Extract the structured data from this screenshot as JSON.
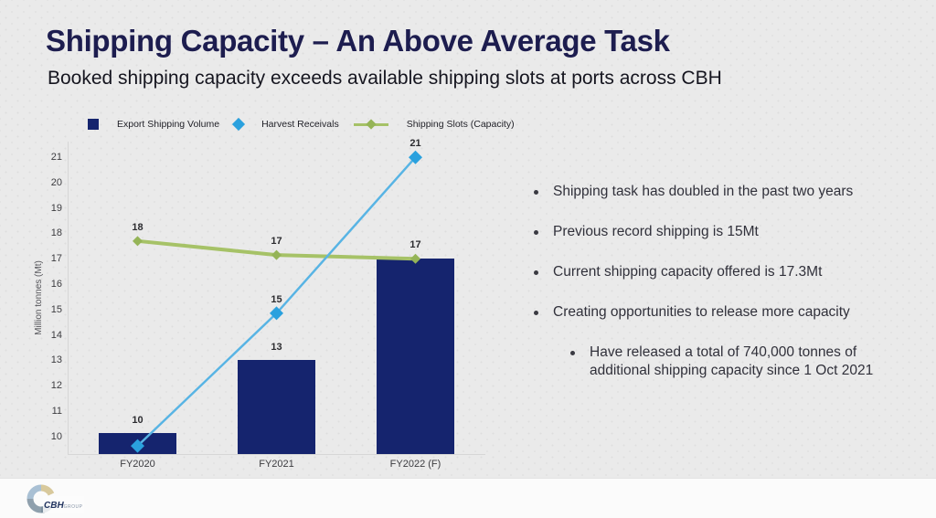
{
  "slide": {
    "title": "Shipping Capacity – An Above Average Task",
    "subtitle": "Booked shipping capacity exceeds available shipping slots at ports across CBH"
  },
  "colors": {
    "background": "#eaeaea",
    "title_navy": "#1d1d4f",
    "bar_navy": "#15246e",
    "harvest_blue": "#2aa1de",
    "harvest_line_blue": "#58b4e4",
    "slots_green": "#a6c267",
    "slots_marker_green": "#95b457",
    "axis_gray": "#d6d6d6",
    "footer_white": "#fbfbfb"
  },
  "chart_data": {
    "type": "bar",
    "subtype": "combo-bar-line",
    "categories": [
      "FY2020",
      "FY2021",
      "FY2022 (F)"
    ],
    "title": "",
    "xlabel": "",
    "ylabel": "Million tonnes (Mt)",
    "yticks": [
      10,
      11,
      12,
      13,
      14,
      15,
      16,
      17,
      18,
      19,
      20,
      21
    ],
    "ylim": [
      9.3,
      21.62
    ],
    "grid": false,
    "legend_position": "top",
    "series": [
      {
        "name": "Export Shipping Volume",
        "type": "bar",
        "marker": "square",
        "color": "#15246e",
        "values": [
          10,
          13,
          17
        ],
        "plot_values": [
          10.13,
          13,
          17
        ],
        "labels": [
          "10",
          "13",
          ""
        ]
      },
      {
        "name": "Harvest Receivals",
        "type": "line",
        "marker": "diamond",
        "color": "#2aa1de",
        "line_color": "#58b4e4",
        "values": [
          9.6,
          15,
          21
        ],
        "plot_values": [
          9.62,
          14.85,
          21
        ],
        "labels": [
          "",
          "15",
          "21"
        ]
      },
      {
        "name": "Shipping Slots (Capacity)",
        "type": "line",
        "marker": "line-diamond",
        "color": "#a6c267",
        "marker_fill": "#95b457",
        "values": [
          18,
          17,
          17
        ],
        "plot_values": [
          17.7,
          17.15,
          17.0
        ],
        "labels": [
          "18",
          "17",
          "17"
        ]
      }
    ]
  },
  "bullets": [
    {
      "level": 0,
      "text": "Shipping task has doubled in the past two years"
    },
    {
      "level": 0,
      "text": "Previous record shipping is 15Mt"
    },
    {
      "level": 0,
      "text": "Current shipping capacity offered is 17.3Mt"
    },
    {
      "level": 0,
      "text": "Creating opportunities to release more capacity"
    },
    {
      "level": 1,
      "text": "Have released a total of 740,000 tonnes of additional shipping capacity since 1 Oct 2021"
    }
  ],
  "footer": {
    "brand": "CBH",
    "brand_suffix": "GROUP"
  }
}
